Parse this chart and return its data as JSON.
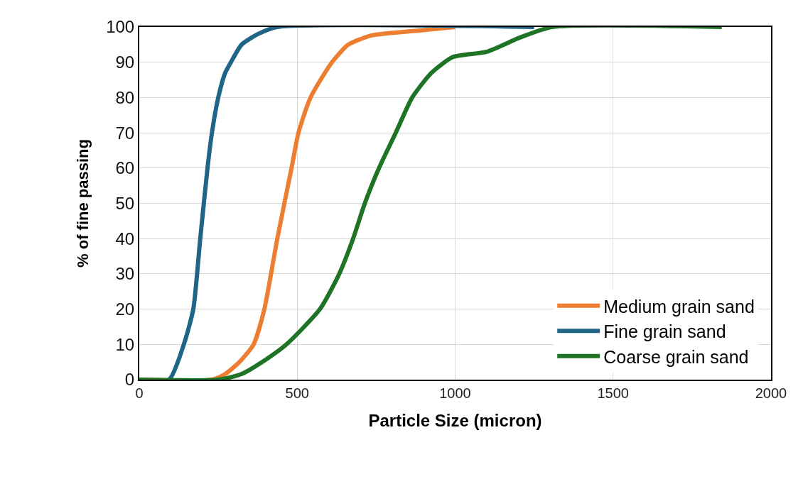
{
  "chart_data": {
    "type": "line",
    "xlabel": "Particle Size (micron)",
    "ylabel": "% of fine passing",
    "xlim": [
      0,
      2000
    ],
    "xticks": [
      0,
      500,
      1000,
      1500,
      2000
    ],
    "ylim": [
      0,
      100
    ],
    "yticks": [
      0,
      10,
      20,
      30,
      40,
      50,
      60,
      70,
      80,
      90,
      100
    ],
    "grid": true,
    "legend": "bottom right",
    "marker": "none",
    "line_style": "solid",
    "series": [
      {
        "name": "Medium grain sand",
        "color": "#ed7d31",
        "x": [
          0,
          230,
          272,
          317,
          362,
          396,
          437,
          482,
          504,
          542,
          610,
          662,
          736,
          887,
          1000
        ],
        "values": [
          0,
          0,
          1.6,
          5,
          10,
          20,
          40,
          60,
          70,
          80,
          90,
          95,
          97.6,
          99,
          100
        ]
      },
      {
        "name": "Fine grain sand",
        "color": "#1f6587",
        "x": [
          0,
          94,
          140,
          171,
          193,
          216,
          230,
          250,
          272,
          290,
          324,
          376,
          437,
          1250
        ],
        "values": [
          0,
          0,
          9.7,
          20,
          40,
          60,
          70,
          80,
          87,
          90,
          95,
          98,
          100,
          100
        ]
      },
      {
        "name": "Coarse grain sand",
        "color": "#1e7324",
        "x": [
          0,
          250,
          324,
          399,
          466,
          572,
          633,
          677,
          714,
          759,
          812,
          864,
          925,
          993,
          1101,
          1205,
          1307,
          1844
        ],
        "values": [
          0,
          0,
          1.6,
          5.6,
          10,
          20,
          30,
          40,
          50,
          60,
          70,
          80,
          87,
          91.5,
          93,
          97,
          100,
          100
        ]
      }
    ]
  }
}
